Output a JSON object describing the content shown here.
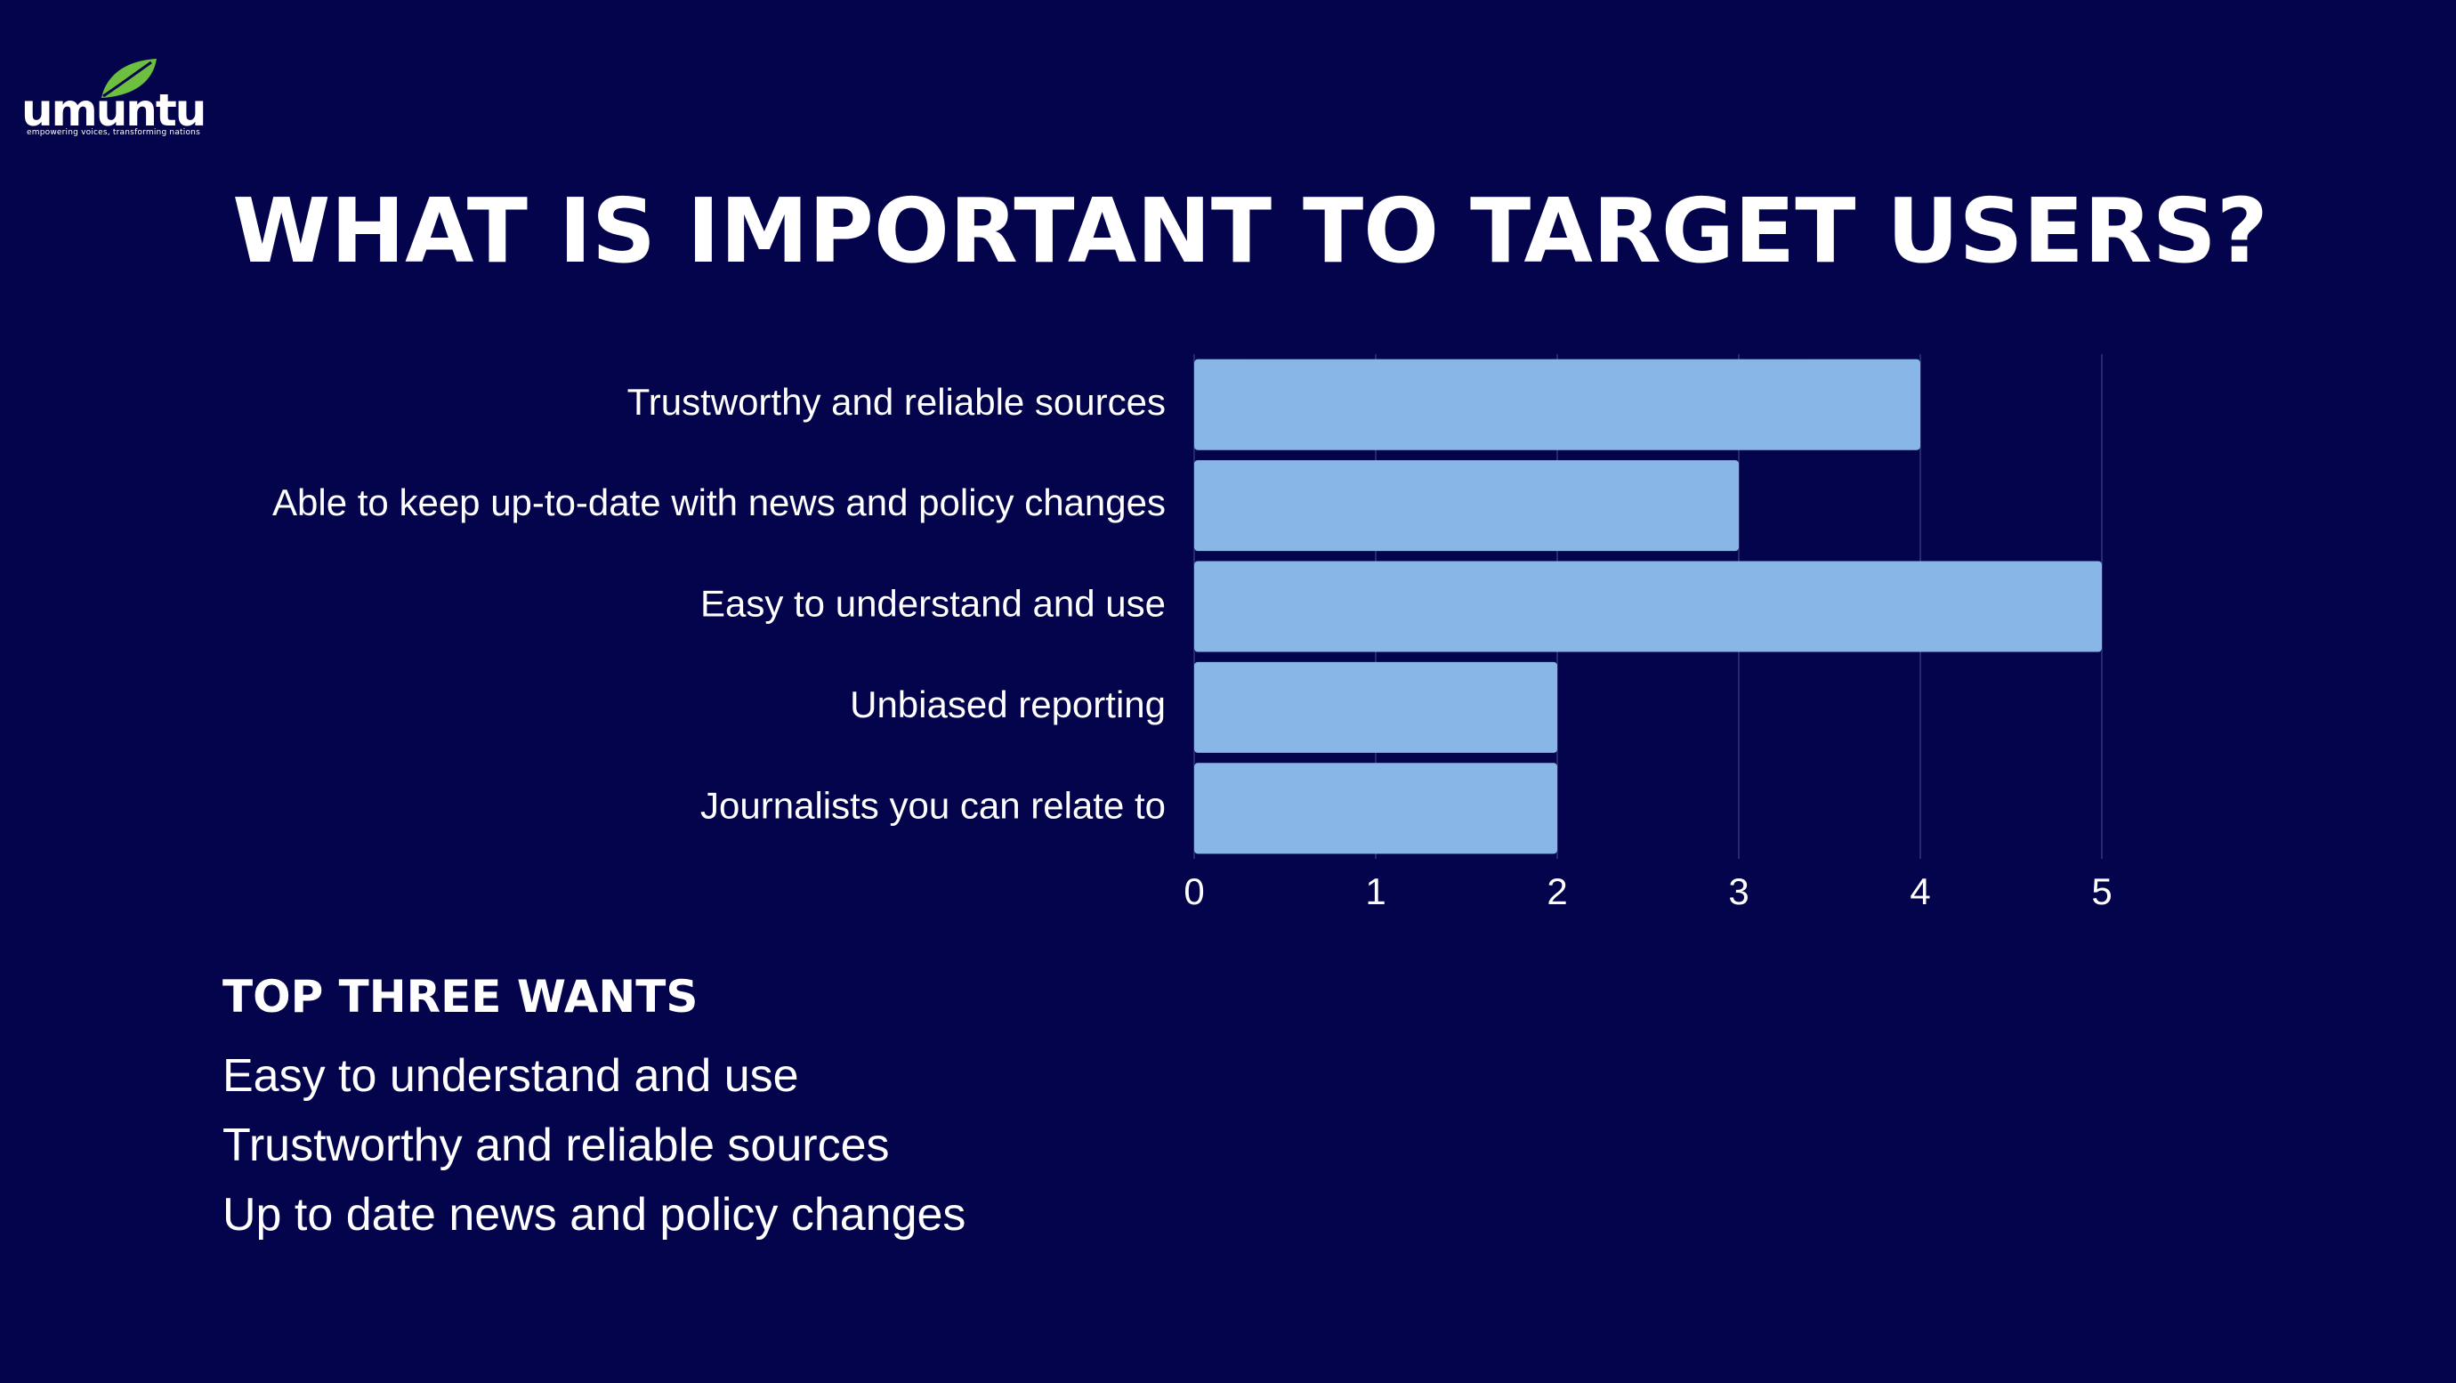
{
  "logo": {
    "wordmark": "umuntu",
    "tagline": "empowering voices, transforming nations"
  },
  "title": "WHAT IS IMPORTANT TO TARGET USERS?",
  "colors": {
    "background": "#03044c",
    "bar": "#88b6e7",
    "leaf": "#6cbf3f",
    "grid": "#26296e"
  },
  "chart_data": {
    "type": "bar",
    "orientation": "horizontal",
    "categories": [
      "Trustworthy and reliable sources",
      "Able to keep up-to-date with news and policy changes",
      "Easy to understand and use",
      "Unbiased reporting",
      "Journalists you can relate to"
    ],
    "values": [
      4,
      3,
      5,
      2,
      2
    ],
    "xlim": [
      0,
      5
    ],
    "xticks": [
      "0",
      "1",
      "2",
      "3",
      "4",
      "5"
    ],
    "grid": true,
    "legend": "none"
  },
  "summary": {
    "heading": "TOP THREE WANTS",
    "items": [
      "Easy to understand and use",
      "Trustworthy and reliable sources",
      "Up to date news and policy changes"
    ]
  }
}
